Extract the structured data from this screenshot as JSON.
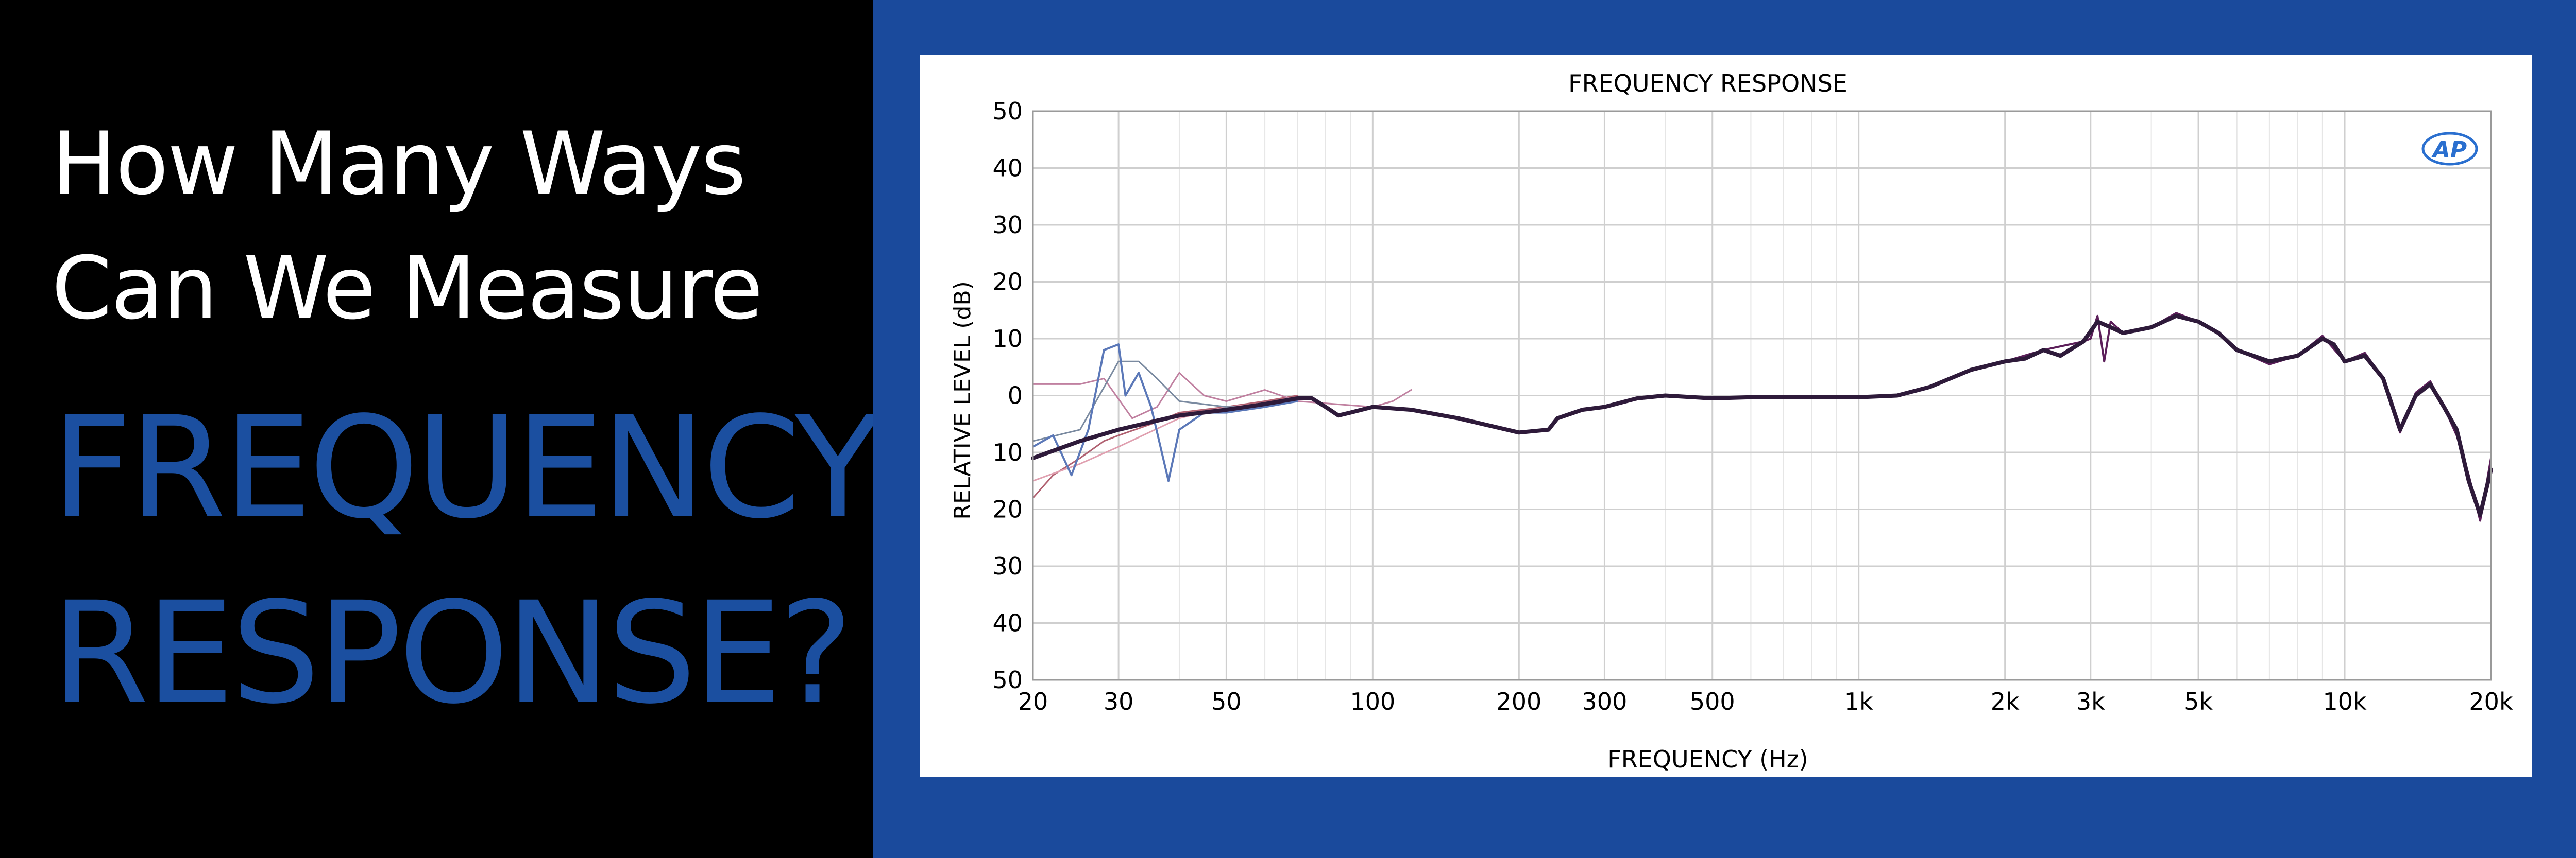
{
  "headline": {
    "line1": "How Many Ways",
    "line2": "Can We Measure",
    "line3": "FREQUENCY",
    "line4": "RESPONSE?"
  },
  "colors": {
    "left_background": "#000000",
    "right_background": "#1a4a9c",
    "headline_white": "#ffffff",
    "headline_blue": "#1b4fa0",
    "grid": "#cfcfcf",
    "logo": "#2a6fcf"
  },
  "logo_text": "AP",
  "chart_data": {
    "type": "line",
    "title": "FREQUENCY RESPONSE",
    "xlabel": "FREQUENCY (Hz)",
    "ylabel": "RELATIVE LEVEL (dB)",
    "xscale": "log",
    "xlim": [
      20,
      20000
    ],
    "ylim": [
      -50,
      50
    ],
    "xticks": [
      {
        "value": 20,
        "label": "20"
      },
      {
        "value": 30,
        "label": "30"
      },
      {
        "value": 50,
        "label": "50"
      },
      {
        "value": 100,
        "label": "100"
      },
      {
        "value": 200,
        "label": "200"
      },
      {
        "value": 300,
        "label": "300"
      },
      {
        "value": 500,
        "label": "500"
      },
      {
        "value": 1000,
        "label": "1k"
      },
      {
        "value": 2000,
        "label": "2k"
      },
      {
        "value": 3000,
        "label": "3k"
      },
      {
        "value": 5000,
        "label": "5k"
      },
      {
        "value": 10000,
        "label": "10k"
      },
      {
        "value": 20000,
        "label": "20k"
      }
    ],
    "yticks": [
      {
        "value": 50,
        "label": "50"
      },
      {
        "value": 40,
        "label": "40"
      },
      {
        "value": 30,
        "label": "30"
      },
      {
        "value": 20,
        "label": "20"
      },
      {
        "value": 10,
        "label": "10"
      },
      {
        "value": 0,
        "label": "0"
      },
      {
        "value": -10,
        "label": "10"
      },
      {
        "value": -20,
        "label": "20"
      },
      {
        "value": -30,
        "label": "30"
      },
      {
        "value": -40,
        "label": "40"
      },
      {
        "value": -50,
        "label": "50"
      }
    ],
    "grid": true,
    "series": [
      {
        "color": "#2e1a3a",
        "width": 8,
        "points": [
          [
            20,
            -11
          ],
          [
            25,
            -8
          ],
          [
            30,
            -6
          ],
          [
            40,
            -3.5
          ],
          [
            50,
            -2.5
          ],
          [
            60,
            -1.5
          ],
          [
            70,
            -0.5
          ],
          [
            75,
            -0.5
          ],
          [
            80,
            -2
          ],
          [
            85,
            -3.5
          ],
          [
            90,
            -3
          ],
          [
            100,
            -2
          ],
          [
            120,
            -2.5
          ],
          [
            150,
            -4
          ],
          [
            200,
            -6.5
          ],
          [
            230,
            -6
          ],
          [
            240,
            -4
          ],
          [
            270,
            -2.5
          ],
          [
            300,
            -2
          ],
          [
            350,
            -0.5
          ],
          [
            400,
            0
          ],
          [
            500,
            -0.5
          ],
          [
            600,
            -0.3
          ],
          [
            800,
            -0.3
          ],
          [
            1000,
            -0.3
          ],
          [
            1200,
            0
          ],
          [
            1400,
            1.5
          ],
          [
            1700,
            4.5
          ],
          [
            2000,
            6
          ],
          [
            2200,
            6.5
          ],
          [
            2400,
            8
          ],
          [
            2600,
            7
          ],
          [
            2900,
            9.5
          ],
          [
            3100,
            13
          ],
          [
            3300,
            12
          ],
          [
            3500,
            11
          ],
          [
            4000,
            12
          ],
          [
            4500,
            14
          ],
          [
            5000,
            13
          ],
          [
            5500,
            11
          ],
          [
            6000,
            8
          ],
          [
            7000,
            6
          ],
          [
            8000,
            7
          ],
          [
            9000,
            10
          ],
          [
            9500,
            9
          ],
          [
            10000,
            6
          ],
          [
            11000,
            7
          ],
          [
            12000,
            3
          ],
          [
            13000,
            -6
          ],
          [
            14000,
            0
          ],
          [
            15000,
            2
          ],
          [
            16000,
            -2
          ],
          [
            17000,
            -6
          ],
          [
            18000,
            -15
          ],
          [
            19000,
            -21
          ],
          [
            20000,
            -13
          ]
        ]
      },
      {
        "color": "#5c1f5a",
        "width": 4,
        "points": [
          [
            1400,
            1.5
          ],
          [
            1700,
            4.5
          ],
          [
            2000,
            6
          ],
          [
            2400,
            8
          ],
          [
            2900,
            9.5
          ],
          [
            3000,
            10
          ],
          [
            3100,
            14
          ],
          [
            3200,
            6
          ],
          [
            3300,
            13
          ],
          [
            3500,
            11
          ],
          [
            4000,
            12
          ],
          [
            4500,
            14.5
          ],
          [
            5000,
            13
          ],
          [
            5500,
            11
          ],
          [
            6000,
            8
          ],
          [
            7000,
            5.5
          ],
          [
            8000,
            7
          ],
          [
            9000,
            10.5
          ],
          [
            10000,
            6
          ],
          [
            11000,
            7.5
          ],
          [
            12000,
            3
          ],
          [
            13000,
            -6.5
          ],
          [
            14000,
            0.5
          ],
          [
            15000,
            2.5
          ],
          [
            16000,
            -2
          ],
          [
            17000,
            -7
          ],
          [
            18000,
            -14
          ],
          [
            19000,
            -22
          ],
          [
            20000,
            -11
          ]
        ]
      },
      {
        "color": "#5b78b8",
        "width": 4,
        "points": [
          [
            20,
            -9
          ],
          [
            22,
            -7
          ],
          [
            24,
            -14
          ],
          [
            26,
            -6
          ],
          [
            28,
            8
          ],
          [
            30,
            9
          ],
          [
            31,
            0
          ],
          [
            33,
            4
          ],
          [
            35,
            -2
          ],
          [
            38,
            -15
          ],
          [
            40,
            -6
          ],
          [
            45,
            -3
          ],
          [
            50,
            -3
          ],
          [
            60,
            -2
          ],
          [
            70,
            -1
          ]
        ]
      },
      {
        "color": "#b06070",
        "width": 3,
        "points": [
          [
            20,
            -18
          ],
          [
            22,
            -14
          ],
          [
            25,
            -11
          ],
          [
            28,
            -8
          ],
          [
            30,
            -7
          ],
          [
            35,
            -5
          ],
          [
            40,
            -3
          ],
          [
            50,
            -2
          ],
          [
            60,
            -1
          ],
          [
            70,
            0
          ]
        ]
      },
      {
        "color": "#c080a0",
        "width": 3,
        "points": [
          [
            20,
            2
          ],
          [
            25,
            2
          ],
          [
            28,
            3
          ],
          [
            32,
            -4
          ],
          [
            36,
            -2
          ],
          [
            40,
            4
          ],
          [
            45,
            0
          ],
          [
            50,
            -1
          ],
          [
            60,
            1
          ],
          [
            70,
            -1
          ],
          [
            100,
            -2
          ],
          [
            110,
            -1
          ],
          [
            120,
            1
          ]
        ]
      },
      {
        "color": "#e0a0b0",
        "width": 3,
        "points": [
          [
            20,
            -15
          ],
          [
            25,
            -12
          ],
          [
            30,
            -9
          ],
          [
            40,
            -4
          ],
          [
            50,
            -2
          ],
          [
            60,
            -1.5
          ],
          [
            70,
            -0.5
          ]
        ]
      },
      {
        "color": "#7a8aa0",
        "width": 3,
        "points": [
          [
            20,
            -8
          ],
          [
            25,
            -6
          ],
          [
            30,
            6
          ],
          [
            33,
            6
          ],
          [
            36,
            3
          ],
          [
            40,
            -1
          ],
          [
            50,
            -2
          ],
          [
            60,
            -2
          ],
          [
            70,
            -1
          ]
        ]
      }
    ]
  }
}
